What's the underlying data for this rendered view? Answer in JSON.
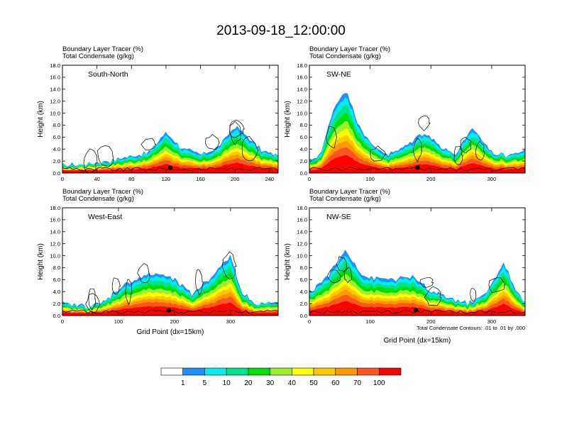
{
  "title": "2013-09-18_12:00:00",
  "colors": {
    "levels": [
      "#ffffff",
      "#1e90ff",
      "#00eeee",
      "#00e38c",
      "#00e000",
      "#9dee30",
      "#ffff00",
      "#ffc800",
      "#ff9900",
      "#ff5522",
      "#ff0000"
    ],
    "contour": "#000000",
    "frame": "#000000"
  },
  "chart_data": [
    {
      "type": "contour",
      "panel": "South-North",
      "header_line1": "Boundary Layer Tracer   (%)",
      "header_line2": "Total Condensate   (g/kg)",
      "region_label": "South-North",
      "ylabel": "Height (km)",
      "xlabel": "",
      "xlim": [
        0,
        250
      ],
      "xticks": [
        "0",
        "40",
        "80",
        "120",
        "160",
        "200",
        "240"
      ],
      "ylim": [
        0,
        18
      ],
      "yticks": [
        "0.0",
        "2.0",
        "4.0",
        "6.0",
        "8.0",
        "10.0",
        "12.0",
        "14.0",
        "16.0",
        "18.0"
      ],
      "tracer_top_km": [
        [
          0,
          1.2
        ],
        [
          20,
          1.5
        ],
        [
          50,
          2.0
        ],
        [
          80,
          2.8
        ],
        [
          100,
          3.5
        ],
        [
          120,
          6.8
        ],
        [
          140,
          4.0
        ],
        [
          160,
          3.0
        ],
        [
          180,
          4.2
        ],
        [
          200,
          7.8
        ],
        [
          215,
          6.0
        ],
        [
          230,
          3.8
        ],
        [
          250,
          3.0
        ]
      ],
      "marker_x": 125
    },
    {
      "type": "contour",
      "panel": "SW-NE",
      "header_line1": "Boundary Layer Tracer   (%)",
      "header_line2": "Total Condensate   (g/kg)",
      "region_label": "SW-NE",
      "ylabel": "Height (km)",
      "xlabel": "",
      "xlim": [
        0,
        355
      ],
      "xticks": [
        "0",
        "100",
        "200",
        "300"
      ],
      "ylim": [
        0,
        18
      ],
      "yticks": [
        "0.0",
        "2.0",
        "4.0",
        "6.0",
        "8.0",
        "10.0",
        "12.0",
        "14.0",
        "16.0",
        "18.0"
      ],
      "tracer_top_km": [
        [
          0,
          2.0
        ],
        [
          20,
          3.5
        ],
        [
          40,
          11.0
        ],
        [
          60,
          14.0
        ],
        [
          80,
          8.5
        ],
        [
          100,
          5.0
        ],
        [
          130,
          3.0
        ],
        [
          160,
          4.5
        ],
        [
          190,
          7.0
        ],
        [
          210,
          5.0
        ],
        [
          240,
          3.0
        ],
        [
          270,
          7.5
        ],
        [
          300,
          3.5
        ],
        [
          330,
          3.0
        ],
        [
          355,
          3.8
        ]
      ],
      "marker_x": 178
    },
    {
      "type": "contour",
      "panel": "West-East",
      "header_line1": "Boundary Layer Tracer   (%)",
      "header_line2": "Total Condensate   (g/kg)",
      "region_label": "West-East",
      "ylabel": "Height (km)",
      "xlabel": "Grid Point (dx=15km)",
      "xlim": [
        0,
        385
      ],
      "xticks": [
        "0",
        "100",
        "200",
        "300"
      ],
      "ylim": [
        0,
        18
      ],
      "yticks": [
        "0.0",
        "2.0",
        "4.0",
        "6.0",
        "8.0",
        "10.0",
        "12.0",
        "14.0",
        "16.0",
        "18.0"
      ],
      "tracer_top_km": [
        [
          0,
          2.0
        ],
        [
          40,
          1.5
        ],
        [
          70,
          2.0
        ],
        [
          100,
          4.5
        ],
        [
          140,
          6.5
        ],
        [
          170,
          7.0
        ],
        [
          200,
          6.0
        ],
        [
          230,
          3.5
        ],
        [
          260,
          6.0
        ],
        [
          300,
          10.0
        ],
        [
          320,
          4.0
        ],
        [
          340,
          2.2
        ],
        [
          385,
          2.0
        ]
      ],
      "marker_x": 190
    },
    {
      "type": "contour",
      "panel": "NW-SE",
      "header_line1": "Boundary Layer Tracer   (%)",
      "header_line2": "Total Condensate   (g/kg)",
      "region_label": "NW-SE",
      "ylabel": "Height (km)",
      "xlabel": "Grid Point (dx=15km)",
      "xlim": [
        0,
        355
      ],
      "xticks": [
        "0",
        "100",
        "200",
        "300"
      ],
      "ylim": [
        0,
        18
      ],
      "yticks": [
        "0.0",
        "2.0",
        "4.0",
        "6.0",
        "8.0",
        "10.0",
        "12.0",
        "14.0",
        "16.0",
        "18.0"
      ],
      "tracer_top_km": [
        [
          0,
          4.0
        ],
        [
          30,
          6.5
        ],
        [
          60,
          11.0
        ],
        [
          90,
          6.5
        ],
        [
          130,
          6.0
        ],
        [
          170,
          6.5
        ],
        [
          200,
          4.0
        ],
        [
          230,
          3.0
        ],
        [
          260,
          2.0
        ],
        [
          290,
          3.5
        ],
        [
          320,
          9.0
        ],
        [
          340,
          4.0
        ],
        [
          355,
          2.2
        ]
      ],
      "marker_x": 175,
      "footnote": "Total Condensate Contours: .01 to .01 by .000"
    }
  ],
  "colorbar": {
    "labels": [
      "1",
      "5",
      "10",
      "20",
      "30",
      "40",
      "50",
      "60",
      "70",
      "100"
    ]
  }
}
